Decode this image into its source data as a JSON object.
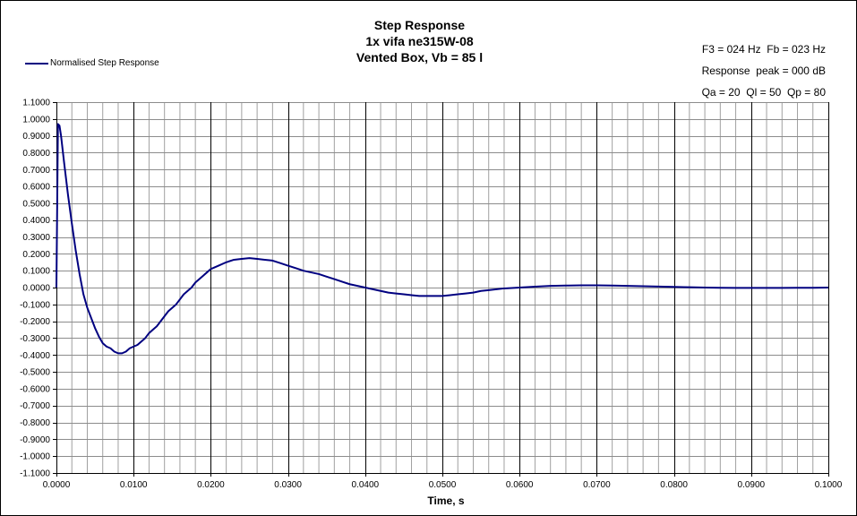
{
  "chart_data": {
    "type": "line",
    "title": [
      "Step Response",
      "1x vifa ne315W-08",
      "Vented Box, Vb = 85 l"
    ],
    "info": [
      "F3 = 024 Hz  Fb = 023 Hz",
      "Response  peak = 000 dB",
      "Qa = 20  Ql = 50  Qp = 80"
    ],
    "xlabel": "Time, s",
    "ylabel": "",
    "xlim": [
      0,
      0.1
    ],
    "ylim": [
      -1.1,
      1.1
    ],
    "x_major_step": 0.01,
    "x_minor_step": 0.002,
    "y_step": 0.1,
    "x_tick_labels": [
      "0.0000",
      "0.0100",
      "0.0200",
      "0.0300",
      "0.0400",
      "0.0500",
      "0.0600",
      "0.0700",
      "0.0800",
      "0.0900",
      "0.1000"
    ],
    "y_tick_labels": [
      "1.1000",
      "1.0000",
      "0.9000",
      "0.8000",
      "0.7000",
      "0.6000",
      "0.5000",
      "0.4000",
      "0.3000",
      "0.2000",
      "0.1000",
      "0.0000",
      "-0.1000",
      "-0.2000",
      "-0.3000",
      "-0.4000",
      "-0.5000",
      "-0.6000",
      "-0.7000",
      "-0.8000",
      "-0.9000",
      "-1.0000",
      "-1.1000"
    ],
    "grid": true,
    "legend_position": "top-left",
    "series": [
      {
        "name": "Normalised Step Response",
        "color": "#000080",
        "x": [
          0.0,
          0.0002,
          0.0004,
          0.0006,
          0.001,
          0.0015,
          0.002,
          0.0025,
          0.003,
          0.0035,
          0.004,
          0.0045,
          0.005,
          0.0055,
          0.006,
          0.0065,
          0.007,
          0.0075,
          0.008,
          0.0085,
          0.009,
          0.0095,
          0.01,
          0.0105,
          0.011,
          0.0115,
          0.012,
          0.0125,
          0.013,
          0.0135,
          0.014,
          0.0145,
          0.015,
          0.0155,
          0.016,
          0.0165,
          0.017,
          0.0175,
          0.018,
          0.0185,
          0.019,
          0.0195,
          0.02,
          0.021,
          0.022,
          0.023,
          0.024,
          0.025,
          0.026,
          0.027,
          0.028,
          0.029,
          0.03,
          0.031,
          0.032,
          0.033,
          0.034,
          0.035,
          0.036,
          0.037,
          0.038,
          0.039,
          0.04,
          0.041,
          0.042,
          0.043,
          0.044,
          0.045,
          0.046,
          0.047,
          0.048,
          0.049,
          0.05,
          0.051,
          0.052,
          0.053,
          0.054,
          0.055,
          0.056,
          0.058,
          0.06,
          0.062,
          0.064,
          0.066,
          0.068,
          0.07,
          0.072,
          0.074,
          0.076,
          0.078,
          0.08,
          0.082,
          0.084,
          0.086,
          0.088,
          0.09,
          0.092,
          0.094,
          0.096,
          0.098,
          0.1
        ],
        "values": [
          0.0,
          0.97,
          0.96,
          0.9,
          0.74,
          0.55,
          0.38,
          0.22,
          0.08,
          -0.04,
          -0.12,
          -0.18,
          -0.24,
          -0.29,
          -0.33,
          -0.35,
          -0.36,
          -0.38,
          -0.39,
          -0.39,
          -0.38,
          -0.36,
          -0.35,
          -0.34,
          -0.32,
          -0.3,
          -0.27,
          -0.25,
          -0.23,
          -0.2,
          -0.17,
          -0.14,
          -0.12,
          -0.1,
          -0.07,
          -0.04,
          -0.02,
          0.0,
          0.03,
          0.05,
          0.07,
          0.09,
          0.11,
          0.13,
          0.15,
          0.165,
          0.17,
          0.175,
          0.17,
          0.165,
          0.16,
          0.145,
          0.13,
          0.115,
          0.1,
          0.09,
          0.08,
          0.065,
          0.05,
          0.035,
          0.02,
          0.01,
          0.0,
          -0.01,
          -0.02,
          -0.03,
          -0.035,
          -0.04,
          -0.045,
          -0.05,
          -0.05,
          -0.05,
          -0.05,
          -0.045,
          -0.04,
          -0.035,
          -0.03,
          -0.02,
          -0.015,
          -0.005,
          0.0,
          0.005,
          0.01,
          0.012,
          0.013,
          0.013,
          0.012,
          0.01,
          0.008,
          0.006,
          0.004,
          0.002,
          0.0,
          -0.001,
          -0.002,
          -0.002,
          -0.002,
          -0.002,
          -0.001,
          -0.001,
          0.0
        ]
      }
    ]
  }
}
